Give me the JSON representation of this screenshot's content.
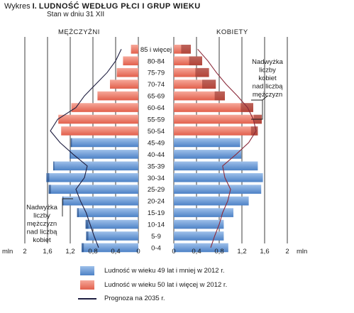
{
  "header": {
    "label": "Wykres",
    "number": "I.",
    "title": "LUDNOŚĆ WEDŁUG PŁCI I GRUP WIEKU",
    "subtitle": "Stan w dniu 31 XII"
  },
  "chart_data": {
    "type": "bar",
    "orientation": "horizontal-pyramid",
    "unit": "mln",
    "side_labels": {
      "left": "MĘŻCZYŹNI",
      "right": "KOBIETY"
    },
    "categories": [
      "0-4",
      "5-9",
      "10-14",
      "15-19",
      "20-24",
      "25-29",
      "30-34",
      "35-39",
      "40-44",
      "45-49",
      "50-54",
      "55-59",
      "60-64",
      "65-69",
      "70-74",
      "75-79",
      "80-84",
      "85 i więcej"
    ],
    "axis_ticks_left": [
      "2",
      "1,6",
      "1,2",
      "0,8",
      "0,4",
      "0"
    ],
    "axis_ticks_right": [
      "0",
      "0,4",
      "0,8",
      "1,2",
      "1,6",
      "2"
    ],
    "xlim": [
      0,
      2
    ],
    "grid": true,
    "series": [
      {
        "name": "Ludność w wieku 49 lat i mniej w 2012 r.",
        "color_top": "#9ec0ea",
        "color_bottom": "#4d82c6",
        "men": [
          1.0,
          0.92,
          0.93,
          1.08,
          1.34,
          1.58,
          1.62,
          1.5,
          1.21,
          1.19,
          null,
          null,
          null,
          null,
          null,
          null,
          null,
          null
        ],
        "women": [
          0.96,
          0.88,
          0.88,
          1.05,
          1.32,
          1.54,
          1.57,
          1.48,
          1.19,
          1.17,
          null,
          null,
          null,
          null,
          null,
          null,
          null,
          null
        ]
      },
      {
        "name": "Ludność w wieku 50 lat i więcej w 2012 r.",
        "color_top": "#f6a89a",
        "color_bottom": "#e2604c",
        "men": [
          null,
          null,
          null,
          null,
          null,
          null,
          null,
          null,
          null,
          null,
          1.36,
          1.41,
          1.18,
          0.72,
          0.5,
          0.38,
          0.27,
          0.13
        ],
        "women": [
          null,
          null,
          null,
          null,
          null,
          null,
          null,
          null,
          null,
          null,
          1.48,
          1.55,
          1.4,
          0.9,
          0.74,
          0.62,
          0.5,
          0.3
        ]
      },
      {
        "name": "Prognoza na 2035 r.",
        "type": "line",
        "color": "#1e1e40",
        "men": [
          0.7,
          0.78,
          0.85,
          0.92,
          1.02,
          1.1,
          0.95,
          0.9,
          1.15,
          1.38,
          1.55,
          1.42,
          1.1,
          0.95,
          0.75,
          0.55,
          0.4,
          0.3
        ],
        "women": [
          0.65,
          0.72,
          0.8,
          0.86,
          0.95,
          1.0,
          0.9,
          0.86,
          1.1,
          1.32,
          1.45,
          1.4,
          1.3,
          1.12,
          0.92,
          0.75,
          0.6,
          0.42
        ]
      }
    ],
    "annotations": [
      {
        "side": "right",
        "lines": [
          "Nadwyżka",
          "liczby",
          "kobiet",
          "nad liczbą",
          "mężczyzn"
        ]
      },
      {
        "side": "left",
        "lines": [
          "Nadwyżka",
          "liczby",
          "mężczyzn",
          "nad liczbą",
          "kobiet"
        ]
      }
    ]
  },
  "legend": {
    "blue": "Ludność w wieku 49 lat i mniej w 2012 r.",
    "red": "Ludność w wieku 50 lat i więcej w 2012 r.",
    "line": "Prognoza na 2035 r."
  }
}
